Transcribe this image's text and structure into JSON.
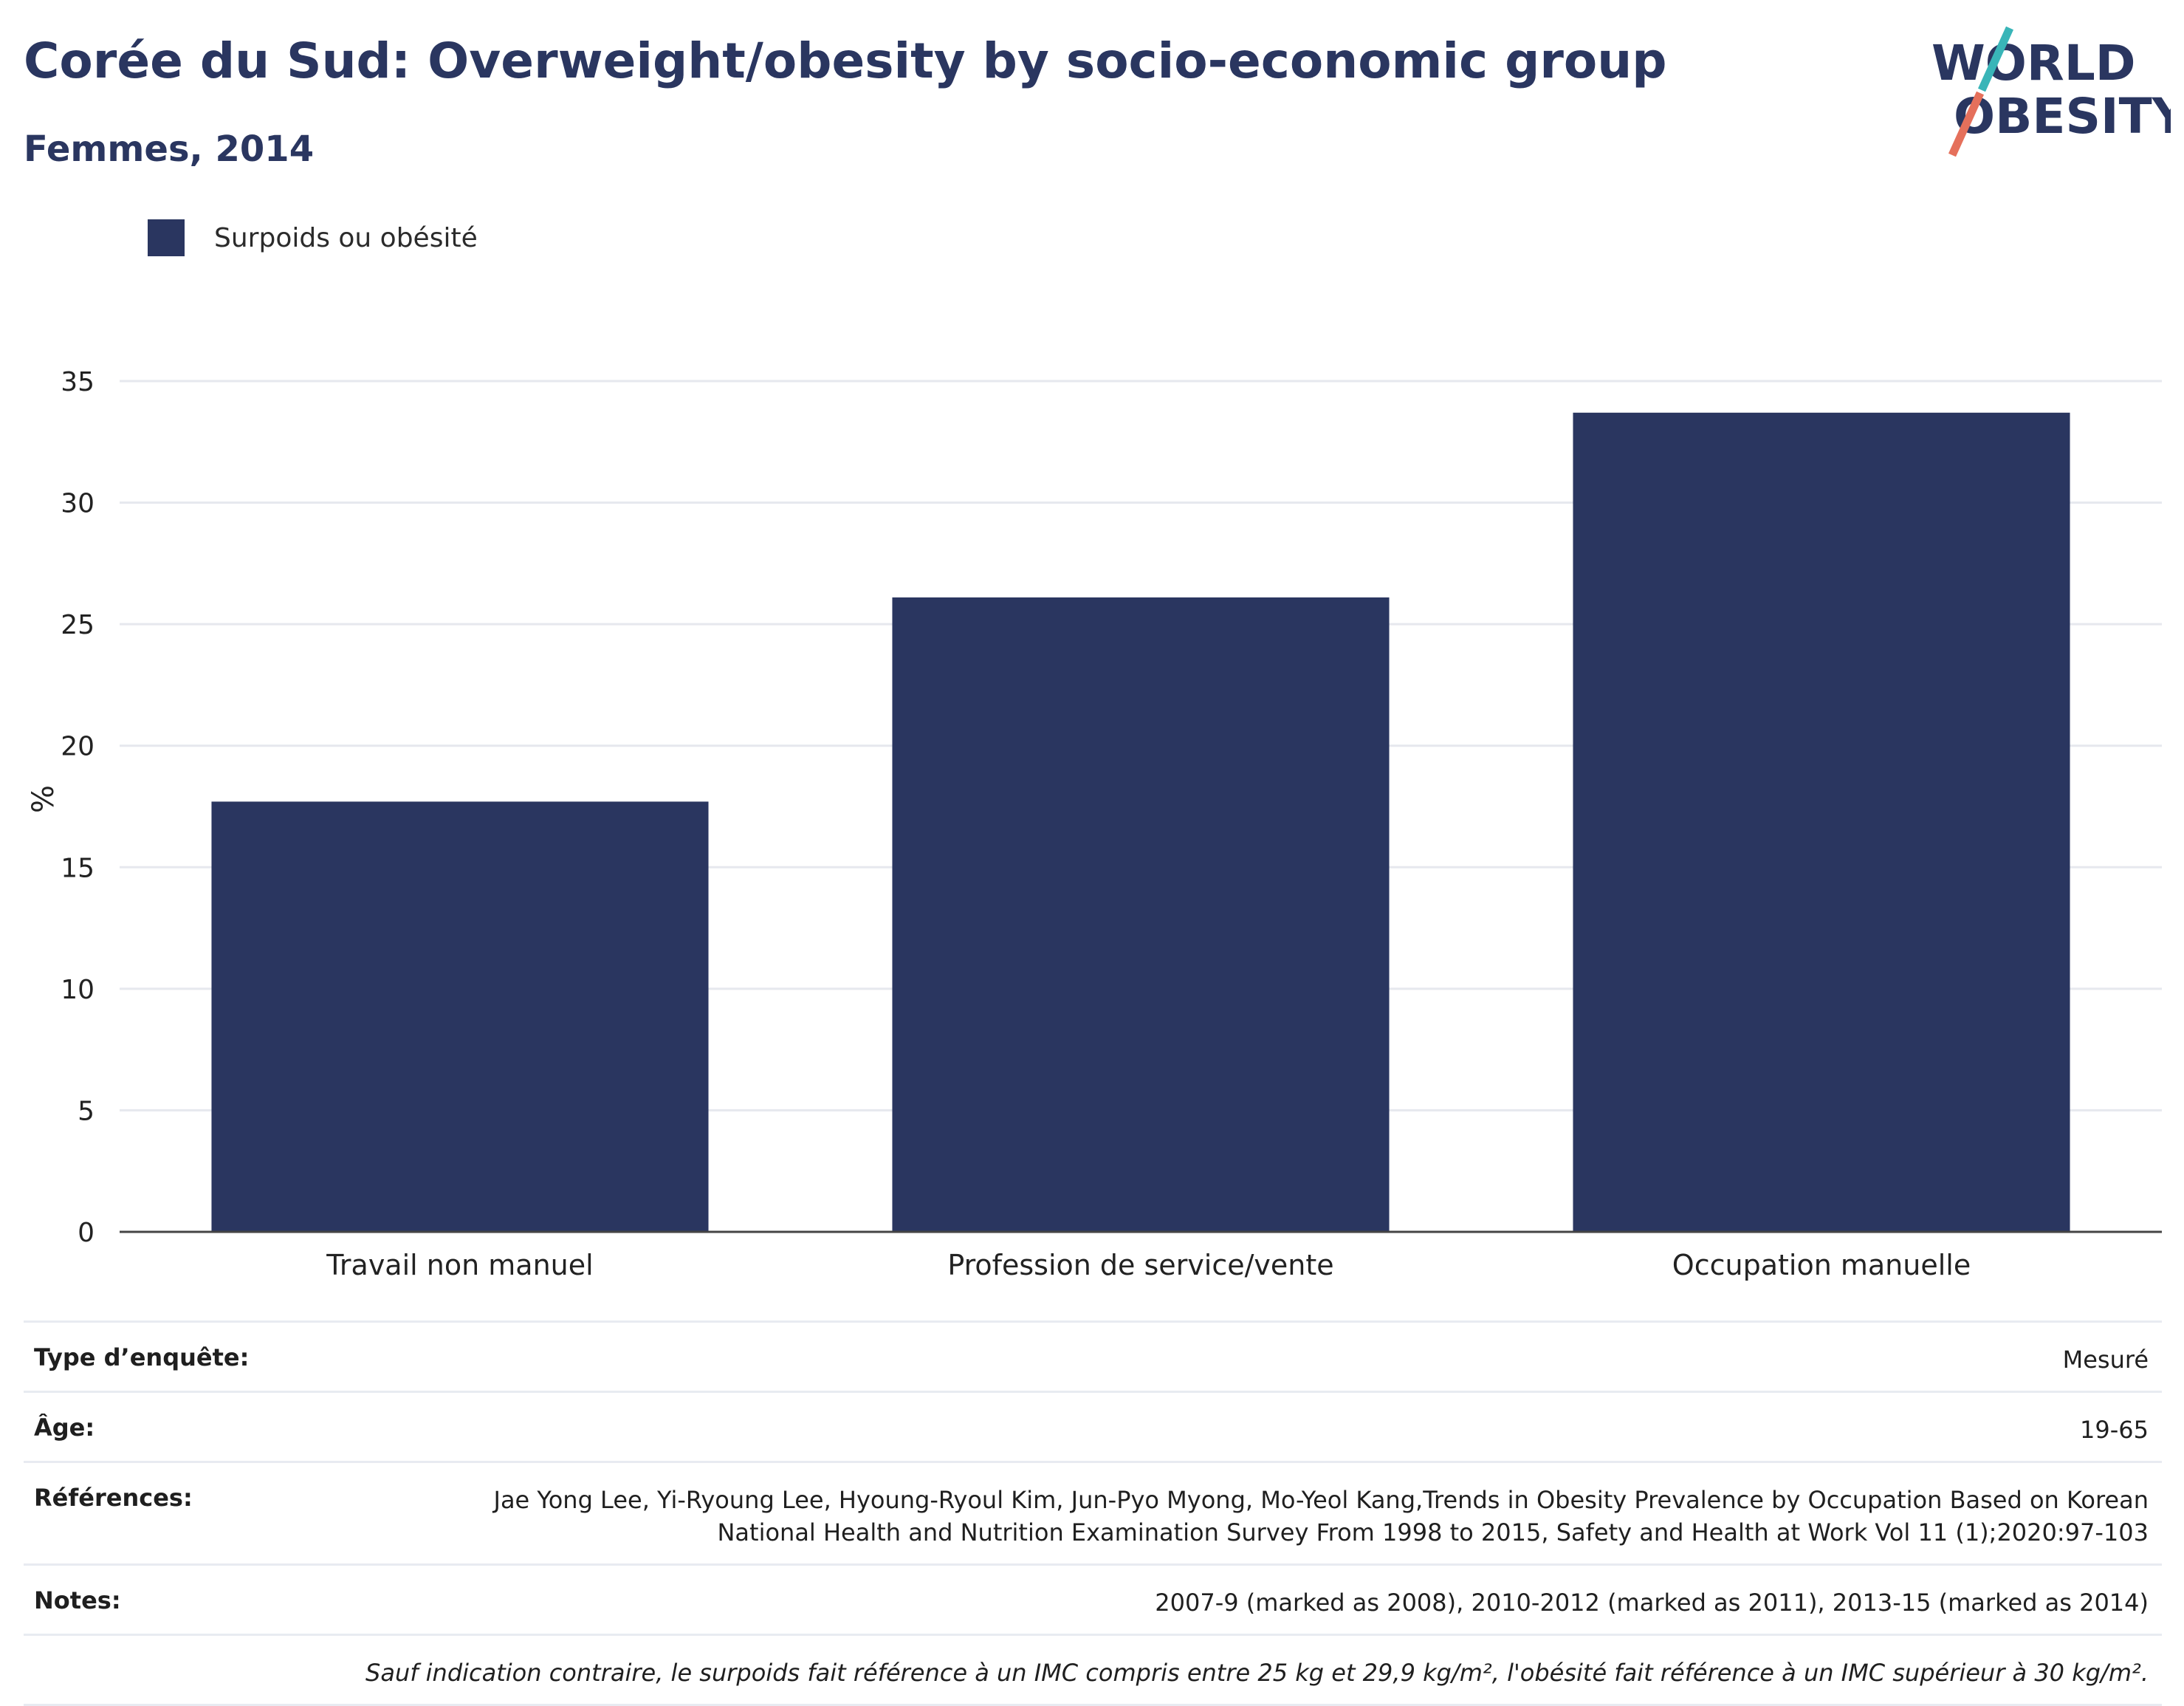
{
  "header": {
    "title": "Corée du Sud: Overweight/obesity by socio-economic group",
    "subtitle": "Femmes, 2014"
  },
  "logo": {
    "line1": "WORLD",
    "line2": "OBESITY"
  },
  "colors": {
    "bar": "#2a3660",
    "title": "#2a3660",
    "grid": "#e6e8ee",
    "axis": "#444444",
    "logo_teal": "#39b5b8",
    "logo_coral": "#e5705b"
  },
  "chart_data": {
    "type": "bar",
    "categories": [
      "Travail non manuel",
      "Profession de service/vente",
      "Occupation manuelle"
    ],
    "series": [
      {
        "name": "Surpoids ou obésité",
        "values": [
          17.7,
          26.1,
          33.7
        ]
      }
    ],
    "title": "Corée du Sud: Overweight/obesity by socio-economic group",
    "subtitle": "Femmes, 2014",
    "xlabel": "",
    "ylabel": "%",
    "ylim": [
      0,
      35
    ],
    "yticks": [
      0,
      5,
      10,
      15,
      20,
      25,
      30,
      35
    ],
    "grid": true,
    "legend": "top-left"
  },
  "info_table": {
    "survey_type_label": "Type d’enquête:",
    "survey_type_value": "Mesuré",
    "age_label": "Âge:",
    "age_value": "19-65",
    "references_label": "Références:",
    "references_value": "Jae Yong Lee, Yi-Ryoung Lee, Hyoung-Ryoul Kim, Jun-Pyo Myong, Mo-Yeol Kang,Trends in Obesity Prevalence by Occupation Based on Korean National Health and Nutrition Examination Survey From 1998 to 2015, Safety and Health at Work Vol 11 (1);2020:97-103",
    "notes_label": "Notes:",
    "notes_value": "2007-9 (marked as 2008), 2010-2012 (marked as 2011), 2013-15 (marked as 2014)",
    "definition_note": "Sauf indication contraire, le surpoids fait référence à un IMC compris entre 25 kg et 29,9 kg/m², l'obésité fait référence à un IMC supérieur à 30 kg/m²."
  }
}
